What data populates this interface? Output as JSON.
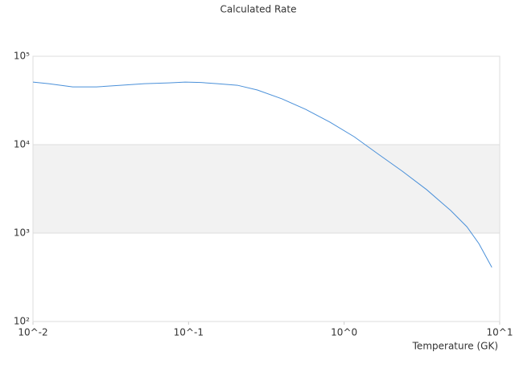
{
  "chart_data": {
    "type": "line",
    "title": "Calculated Rate",
    "x_label": "Temperature (GK)",
    "x": [
      0.01,
      0.0126,
      0.018,
      0.0256,
      0.0366,
      0.052,
      0.075,
      0.095,
      0.12,
      0.153,
      0.206,
      0.277,
      0.398,
      0.568,
      0.81,
      1.16,
      1.66,
      2.37,
      3.39,
      4.84,
      6.15,
      7.35,
      8.9
    ],
    "series": [
      {
        "color": "#4a90d9",
        "values": [
          51000,
          49000,
          45000,
          45000,
          47000,
          49000,
          50000,
          51000,
          50500,
          49000,
          47000,
          41500,
          33000,
          25000,
          18000,
          12300,
          7800,
          5000,
          3100,
          1800,
          1180,
          760,
          410
        ]
      }
    ],
    "xlog": true,
    "ylog": true,
    "alternate_bands": true,
    "xlim": [
      0.01,
      10
    ],
    "ylim": [
      100,
      100000
    ],
    "xticks": [
      {
        "value": 0.01,
        "label": "10^-2"
      },
      {
        "value": 0.1,
        "label": "10^-1"
      },
      {
        "value": 1,
        "label": "10^0"
      },
      {
        "value": 10,
        "label": "10^1"
      }
    ],
    "yticks": [
      {
        "value": 100,
        "label": "10²"
      },
      {
        "value": 1000,
        "label": "10³"
      },
      {
        "value": 10000,
        "label": "10⁴"
      },
      {
        "value": 100000,
        "label": "10⁵"
      }
    ]
  }
}
